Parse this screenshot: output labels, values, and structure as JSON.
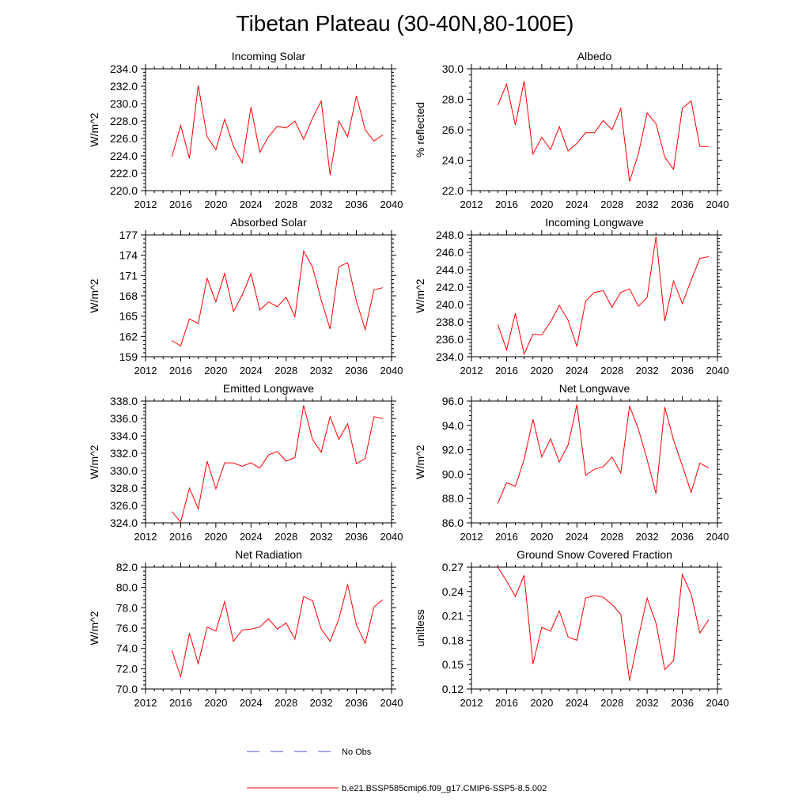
{
  "title": "Tibetan Plateau (30-40N,80-100E)",
  "legend": {
    "obs_label": "No Obs",
    "obs_color": "#4b4bd6",
    "model_label": "b.e21.BSSP585cmip6.f09_g17.CMIP6-SSP5-8.5.002",
    "model_color": "#ff0000"
  },
  "chart_data": [
    {
      "type": "line",
      "title": "Incoming Solar",
      "ylabel": "W/m^2",
      "xlim": [
        2012,
        2040
      ],
      "ylim": [
        220,
        234
      ],
      "x_ticks": [
        2012,
        2016,
        2020,
        2024,
        2028,
        2032,
        2036,
        2040
      ],
      "y_ticks": [
        "220.0",
        "222.0",
        "224.0",
        "226.0",
        "228.0",
        "230.0",
        "232.0",
        "234.0"
      ],
      "x": [
        2015,
        2016,
        2017,
        2018,
        2019,
        2020,
        2021,
        2022,
        2023,
        2024,
        2025,
        2026,
        2027,
        2028,
        2029,
        2030,
        2031,
        2032,
        2033,
        2034,
        2035,
        2036,
        2037,
        2038,
        2039
      ],
      "series": [
        {
          "values": [
            223.9,
            227.5,
            223.7,
            232.1,
            226.2,
            224.7,
            228.2,
            225.1,
            223.2,
            229.6,
            224.4,
            226.2,
            227.4,
            227.2,
            228.0,
            225.9,
            228.3,
            230.3,
            221.8,
            228.0,
            226.2,
            230.9,
            227.0,
            225.7,
            226.4
          ]
        }
      ]
    },
    {
      "type": "line",
      "title": "Albedo",
      "ylabel": "% reflected",
      "xlim": [
        2012,
        2040
      ],
      "ylim": [
        22,
        30
      ],
      "x_ticks": [
        2012,
        2016,
        2020,
        2024,
        2028,
        2032,
        2036,
        2040
      ],
      "y_ticks": [
        "22.0",
        "24.0",
        "26.0",
        "28.0",
        "30.0"
      ],
      "x": [
        2015,
        2016,
        2017,
        2018,
        2019,
        2020,
        2021,
        2022,
        2023,
        2024,
        2025,
        2026,
        2027,
        2028,
        2029,
        2030,
        2031,
        2032,
        2033,
        2034,
        2035,
        2036,
        2037,
        2038,
        2039
      ],
      "series": [
        {
          "values": [
            27.6,
            29.0,
            26.3,
            29.2,
            24.4,
            25.5,
            24.7,
            26.2,
            24.6,
            25.1,
            25.8,
            25.8,
            26.6,
            26.0,
            27.4,
            22.6,
            24.4,
            27.1,
            26.4,
            24.2,
            23.4,
            27.4,
            27.9,
            24.9,
            24.9
          ]
        }
      ]
    },
    {
      "type": "line",
      "title": "Absorbed Solar",
      "ylabel": "W/m^2",
      "xlim": [
        2012,
        2040
      ],
      "ylim": [
        159,
        177
      ],
      "x_ticks": [
        2012,
        2016,
        2020,
        2024,
        2028,
        2032,
        2036,
        2040
      ],
      "y_ticks": [
        "159",
        "162",
        "165",
        "168",
        "171",
        "174",
        "177"
      ],
      "x": [
        2015,
        2016,
        2017,
        2018,
        2019,
        2020,
        2021,
        2022,
        2023,
        2024,
        2025,
        2026,
        2027,
        2028,
        2029,
        2030,
        2031,
        2032,
        2033,
        2034,
        2035,
        2036,
        2037,
        2038,
        2039
      ],
      "series": [
        {
          "values": [
            161.4,
            160.6,
            164.6,
            163.9,
            170.6,
            167.1,
            171.3,
            165.7,
            168.1,
            171.3,
            165.9,
            167.1,
            166.4,
            167.8,
            164.9,
            174.6,
            172.3,
            167.4,
            163.1,
            172.3,
            172.9,
            167.2,
            163.0,
            168.9,
            169.2
          ]
        }
      ]
    },
    {
      "type": "line",
      "title": "Incoming Longwave",
      "ylabel": "W/m^2",
      "xlim": [
        2012,
        2040
      ],
      "ylim": [
        234,
        248
      ],
      "x_ticks": [
        2012,
        2016,
        2020,
        2024,
        2028,
        2032,
        2036,
        2040
      ],
      "y_ticks": [
        "234.0",
        "236.0",
        "238.0",
        "240.0",
        "242.0",
        "244.0",
        "246.0",
        "248.0"
      ],
      "x": [
        2015,
        2016,
        2017,
        2018,
        2019,
        2020,
        2021,
        2022,
        2023,
        2024,
        2025,
        2026,
        2027,
        2028,
        2029,
        2030,
        2031,
        2032,
        2033,
        2034,
        2035,
        2036,
        2037,
        2038,
        2039
      ],
      "series": [
        {
          "values": [
            237.7,
            234.8,
            239.0,
            234.3,
            236.6,
            236.5,
            238.0,
            239.9,
            238.2,
            235.2,
            240.4,
            241.4,
            241.6,
            239.7,
            241.4,
            241.8,
            239.8,
            240.8,
            247.8,
            238.1,
            242.7,
            240.1,
            242.8,
            245.3,
            245.5
          ]
        }
      ]
    },
    {
      "type": "line",
      "title": "Emitted Longwave",
      "ylabel": "W/m^2",
      "xlim": [
        2012,
        2040
      ],
      "ylim": [
        324,
        338
      ],
      "x_ticks": [
        2012,
        2016,
        2020,
        2024,
        2028,
        2032,
        2036,
        2040
      ],
      "y_ticks": [
        "324.0",
        "326.0",
        "328.0",
        "330.0",
        "332.0",
        "334.0",
        "336.0",
        "338.0"
      ],
      "x": [
        2015,
        2016,
        2017,
        2018,
        2019,
        2020,
        2021,
        2022,
        2023,
        2024,
        2025,
        2026,
        2027,
        2028,
        2029,
        2030,
        2031,
        2032,
        2033,
        2034,
        2035,
        2036,
        2037,
        2038,
        2039
      ],
      "series": [
        {
          "values": [
            325.3,
            324.1,
            328.0,
            325.6,
            331.1,
            327.9,
            330.9,
            330.9,
            330.5,
            330.9,
            330.3,
            331.8,
            332.2,
            331.1,
            331.5,
            337.5,
            333.6,
            332.1,
            336.2,
            333.6,
            335.4,
            330.8,
            331.4,
            336.2,
            336.0
          ]
        }
      ]
    },
    {
      "type": "line",
      "title": "Net Longwave",
      "ylabel": "W/m^2",
      "xlim": [
        2012,
        2040
      ],
      "ylim": [
        86,
        96
      ],
      "x_ticks": [
        2012,
        2016,
        2020,
        2024,
        2028,
        2032,
        2036,
        2040
      ],
      "y_ticks": [
        "86.0",
        "88.0",
        "90.0",
        "92.0",
        "94.0",
        "96.0"
      ],
      "x": [
        2015,
        2016,
        2017,
        2018,
        2019,
        2020,
        2021,
        2022,
        2023,
        2024,
        2025,
        2026,
        2027,
        2028,
        2029,
        2030,
        2031,
        2032,
        2033,
        2034,
        2035,
        2036,
        2037,
        2038,
        2039
      ],
      "series": [
        {
          "values": [
            87.6,
            89.3,
            89.0,
            91.2,
            94.5,
            91.4,
            92.9,
            91.0,
            92.4,
            95.7,
            89.9,
            90.4,
            90.6,
            91.4,
            90.1,
            95.6,
            93.7,
            91.2,
            88.4,
            95.5,
            92.8,
            90.7,
            88.5,
            90.9,
            90.5
          ]
        }
      ]
    },
    {
      "type": "line",
      "title": "Net Radiation",
      "ylabel": "W/m^2",
      "xlim": [
        2012,
        2040
      ],
      "ylim": [
        70,
        82
      ],
      "x_ticks": [
        2012,
        2016,
        2020,
        2024,
        2028,
        2032,
        2036,
        2040
      ],
      "y_ticks": [
        "70.0",
        "72.0",
        "74.0",
        "76.0",
        "78.0",
        "80.0",
        "82.0"
      ],
      "x": [
        2015,
        2016,
        2017,
        2018,
        2019,
        2020,
        2021,
        2022,
        2023,
        2024,
        2025,
        2026,
        2027,
        2028,
        2029,
        2030,
        2031,
        2032,
        2033,
        2034,
        2035,
        2036,
        2037,
        2038,
        2039
      ],
      "series": [
        {
          "values": [
            73.8,
            71.2,
            75.5,
            72.5,
            76.1,
            75.7,
            78.6,
            74.7,
            75.8,
            75.9,
            76.1,
            76.9,
            75.9,
            76.5,
            74.9,
            79.1,
            78.7,
            75.9,
            74.7,
            76.9,
            80.3,
            76.3,
            74.5,
            78.1,
            78.8
          ]
        }
      ]
    },
    {
      "type": "line",
      "title": "Ground Snow Covered Fraction",
      "ylabel": "unitless",
      "xlim": [
        2012,
        2040
      ],
      "ylim": [
        0.12,
        0.27
      ],
      "x_ticks": [
        2012,
        2016,
        2020,
        2024,
        2028,
        2032,
        2036,
        2040
      ],
      "y_ticks": [
        "0.12",
        "0.15",
        "0.18",
        "0.21",
        "0.24",
        "0.27"
      ],
      "x": [
        2015,
        2016,
        2017,
        2018,
        2019,
        2020,
        2021,
        2022,
        2023,
        2024,
        2025,
        2026,
        2027,
        2028,
        2029,
        2030,
        2031,
        2032,
        2033,
        2034,
        2035,
        2036,
        2037,
        2038,
        2039
      ],
      "series": [
        {
          "values": [
            0.27,
            0.253,
            0.234,
            0.26,
            0.151,
            0.196,
            0.191,
            0.216,
            0.184,
            0.18,
            0.232,
            0.235,
            0.233,
            0.224,
            0.212,
            0.13,
            0.183,
            0.232,
            0.201,
            0.144,
            0.155,
            0.261,
            0.237,
            0.189,
            0.205
          ]
        }
      ]
    }
  ]
}
